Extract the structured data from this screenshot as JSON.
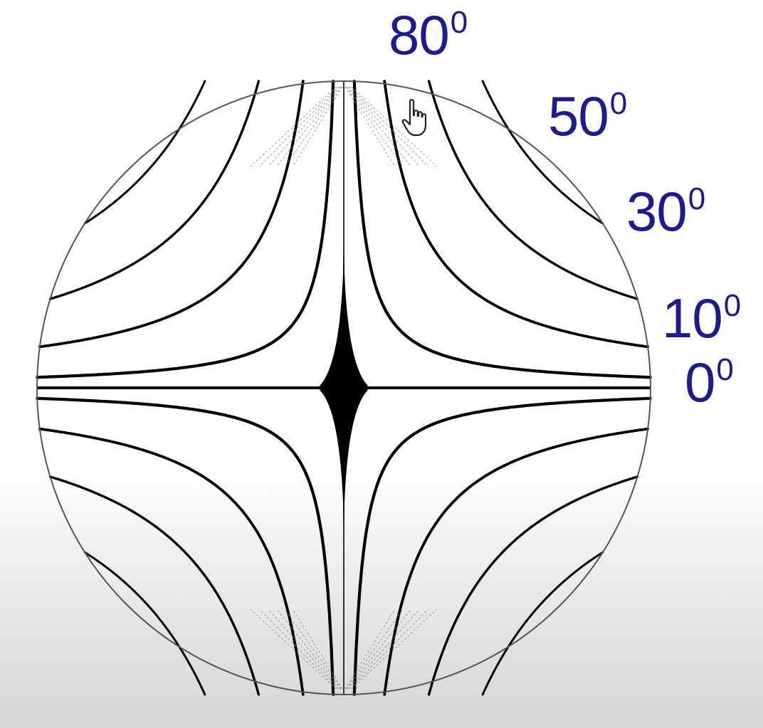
{
  "angle_labels": [
    {
      "value": "80",
      "sup": "0"
    },
    {
      "value": "50",
      "sup": "0"
    },
    {
      "value": "30",
      "sup": "0"
    },
    {
      "value": "10",
      "sup": "0"
    },
    {
      "value": "0",
      "sup": "0"
    }
  ],
  "colors": {
    "label": "#1c1c8c",
    "line": "#000000"
  },
  "cursor_icon": "hand-pointer-icon"
}
